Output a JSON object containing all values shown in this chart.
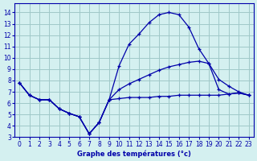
{
  "title": "Graphe des températures (°c)",
  "bg_color": "#d4f0f0",
  "grid_color": "#a0c8c8",
  "line_color": "#0000aa",
  "xlim": [
    -0.5,
    23.5
  ],
  "ylim": [
    3,
    14.8
  ],
  "yticks": [
    3,
    4,
    5,
    6,
    7,
    8,
    9,
    10,
    11,
    12,
    13,
    14
  ],
  "xticks": [
    0,
    1,
    2,
    3,
    4,
    5,
    6,
    7,
    8,
    9,
    10,
    11,
    12,
    13,
    14,
    15,
    16,
    17,
    18,
    19,
    20,
    21,
    22,
    23
  ],
  "line1_x": [
    0,
    1,
    2,
    3,
    4,
    5,
    6,
    7,
    8,
    9,
    10,
    11,
    12,
    13,
    14,
    15,
    16,
    17,
    18,
    19,
    20,
    21,
    22,
    23
  ],
  "line1_y": [
    7.8,
    6.7,
    6.3,
    6.3,
    5.5,
    5.1,
    4.8,
    3.3,
    4.3,
    6.3,
    9.3,
    11.2,
    12.1,
    13.1,
    13.8,
    14.0,
    13.8,
    12.7,
    10.8,
    9.5,
    7.2,
    6.8,
    6.9,
    6.7
  ],
  "line2_x": [
    0,
    1,
    2,
    3,
    4,
    5,
    6,
    7,
    8,
    9,
    10,
    11,
    12,
    13,
    14,
    15,
    16,
    17,
    18,
    19,
    20,
    21,
    22,
    23
  ],
  "line2_y": [
    7.8,
    6.7,
    6.3,
    6.3,
    5.5,
    5.1,
    4.8,
    3.3,
    4.3,
    6.3,
    7.2,
    7.7,
    8.1,
    8.5,
    8.9,
    9.2,
    9.4,
    9.6,
    9.7,
    9.5,
    8.1,
    7.5,
    7.0,
    6.7
  ],
  "line3_x": [
    0,
    1,
    2,
    3,
    4,
    5,
    6,
    7,
    8,
    9,
    10,
    11,
    12,
    13,
    14,
    15,
    16,
    17,
    18,
    19,
    20,
    21,
    22,
    23
  ],
  "line3_y": [
    7.8,
    6.7,
    6.3,
    6.3,
    5.5,
    5.1,
    4.8,
    3.3,
    4.3,
    6.3,
    6.4,
    6.5,
    6.5,
    6.5,
    6.6,
    6.6,
    6.7,
    6.7,
    6.7,
    6.7,
    6.7,
    6.8,
    6.9,
    6.7
  ]
}
